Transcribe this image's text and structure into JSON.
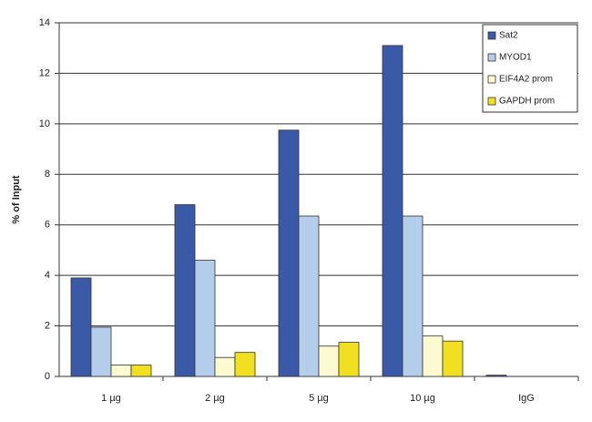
{
  "chart_data": {
    "type": "bar",
    "y_label": "% of Input",
    "categories": [
      "1 µg",
      "2 µg",
      "5 µg",
      "10 µg",
      "IgG"
    ],
    "series": [
      {
        "name": "Sat2",
        "color": "#3a5aa8",
        "values": [
          3.9,
          6.8,
          9.75,
          13.1,
          0.05
        ]
      },
      {
        "name": "MYOD1",
        "color": "#b4cdea",
        "values": [
          1.95,
          4.6,
          6.35,
          6.35,
          0
        ]
      },
      {
        "name": "EIF4A2 prom",
        "color": "#fdf9d0",
        "values": [
          0.45,
          0.75,
          1.2,
          1.6,
          0
        ]
      },
      {
        "name": "GAPDH prom",
        "color": "#f0e020",
        "values": [
          0.45,
          0.95,
          1.35,
          1.4,
          0
        ]
      }
    ],
    "ylim": [
      0,
      14
    ],
    "yticks": [
      0,
      2,
      4,
      6,
      8,
      10,
      12,
      14
    ],
    "grid": true,
    "legend": "top-right"
  }
}
